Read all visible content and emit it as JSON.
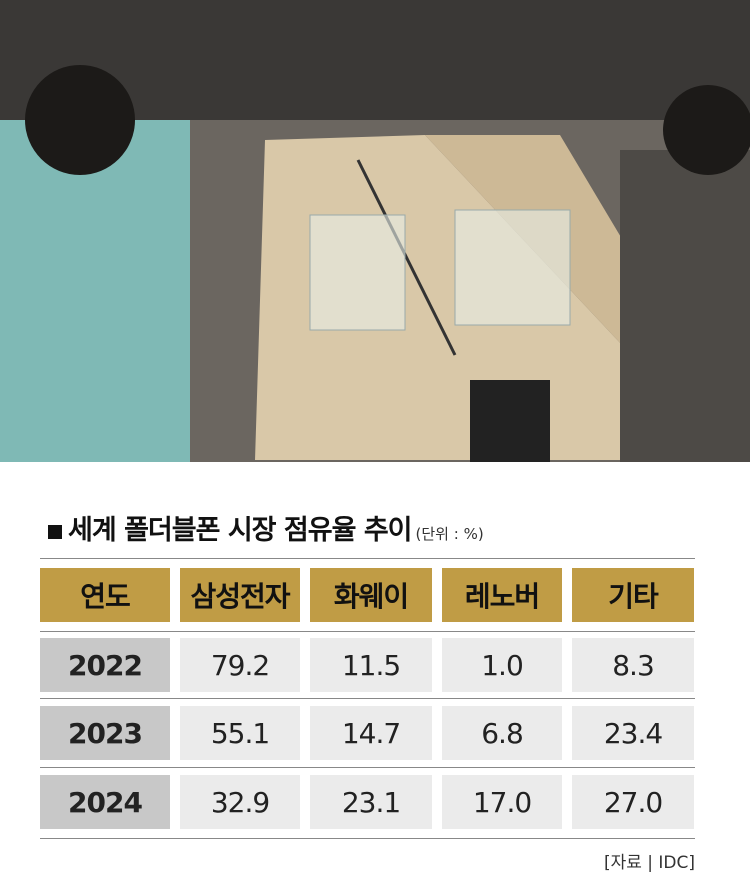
{
  "title": "세계 폴더블폰 시장 점유율 추이",
  "unit": "(단위 : %)",
  "table": {
    "header": [
      "연도",
      "삼성전자",
      "화웨이",
      "레노버",
      "기타"
    ],
    "rows": [
      [
        "2022",
        "79.2",
        "11.5",
        "1.0",
        "8.3"
      ],
      [
        "2023",
        "55.1",
        "14.7",
        "6.8",
        "23.4"
      ],
      [
        "2024",
        "32.9",
        "23.1",
        "17.0",
        "27.0"
      ]
    ]
  },
  "source": "[자료 | IDC]"
}
